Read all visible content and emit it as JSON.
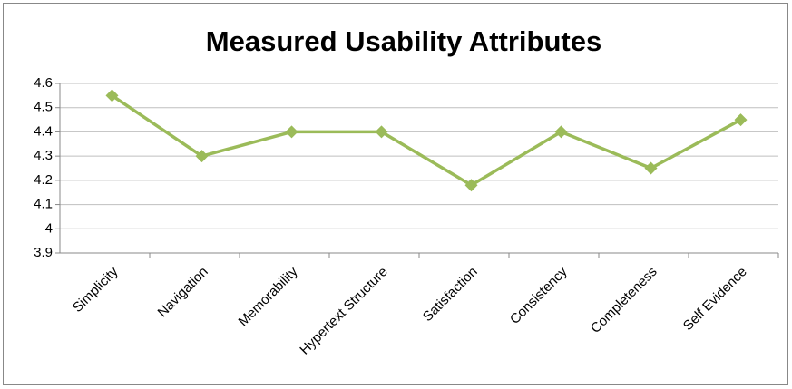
{
  "chart_data": {
    "type": "line",
    "title": "Measured Usability Attributes",
    "categories": [
      "Simplicity",
      "Navigation",
      "Memorability",
      "Hypertext Structure",
      "Satisfaction",
      "Consistency",
      "Completeness",
      "Self Evidence"
    ],
    "series": [
      {
        "color": "#9bbb59",
        "values": [
          4.55,
          4.3,
          4.4,
          4.4,
          4.18,
          4.4,
          4.25,
          4.45
        ]
      }
    ],
    "ylim": [
      3.9,
      4.6
    ],
    "yticks": [
      3.9,
      4,
      4.1,
      4.2,
      4.3,
      4.4,
      4.5,
      4.6
    ],
    "grid": true
  }
}
